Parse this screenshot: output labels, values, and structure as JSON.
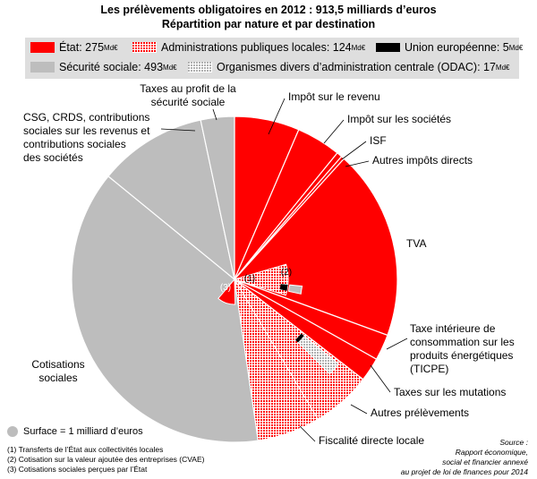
{
  "title": "Les prélèvements obligatoires en 2012 : 913,5 milliards d’euros",
  "subtitle": "Répartition par nature et par destination",
  "legend": {
    "etat": {
      "label": "État: 275",
      "unit": "Md€",
      "color": "#ff0000"
    },
    "apul": {
      "label": "Administrations publiques locales: 124",
      "unit": "Md€",
      "color": "#ff0000"
    },
    "ue": {
      "label": "Union européenne: 5",
      "unit": "Md€",
      "color": "#000000"
    },
    "secu": {
      "label": "Sécurité sociale: 493",
      "unit": "Md€",
      "color": "#bdbdbd"
    },
    "odac": {
      "label": "Organismes divers d’administration centrale (ODAC): 17",
      "unit": "Md€",
      "color": "#bdbdbd"
    }
  },
  "chart_data": {
    "type": "pie",
    "title": "Les prélèvements obligatoires en 2012 : 913,5 milliards d’euros",
    "subtitle": "Répartition par nature et par destination",
    "total": 913.5,
    "scale_note": "Surface = 1 milliard d’euros",
    "categories": [
      {
        "label": "Impôt sur le revenu",
        "value": 60
      },
      {
        "label": "Impôt sur les sociétés",
        "value": 41
      },
      {
        "label": "ISF",
        "value": 5
      },
      {
        "label": "Autres impôts directs",
        "value": 3
      },
      {
        "label": "TVA",
        "value": 175
      },
      {
        "label": "Taxe intérieure de consommation sur les produits énergétiques (TICPE)",
        "value": 24
      },
      {
        "label": "Taxes sur les mutations",
        "value": 22
      },
      {
        "label": "Autres prélèvements",
        "value": 55
      },
      {
        "label": "Fiscalité directe locale",
        "value": 58
      },
      {
        "label": "Cotisations sociales",
        "value": 355
      },
      {
        "label": "CSG, CRDS, contributions sociales sur les revenus et contributions sociales des sociétés",
        "value": 100
      },
      {
        "label": "Taxes au profit de la sécurité sociale",
        "value": 31
      }
    ],
    "series": [
      {
        "name": "État",
        "value": 275
      },
      {
        "name": "Administrations publiques locales",
        "value": 124
      },
      {
        "name": "Union européenne",
        "value": 5
      },
      {
        "name": "Sécurité sociale",
        "value": 493
      },
      {
        "name": "Organismes divers d’administration centrale (ODAC)",
        "value": 17
      }
    ],
    "inner_labels": [
      "(1)",
      "(2)",
      "(3)"
    ]
  },
  "footnotes": [
    "(1) Transferts de l’État aux collectivités locales",
    "(2) Cotisation sur la valeur ajoutée des entreprises (CVAE)",
    "(3) Cotisations sociales perçues par l’État"
  ],
  "source": [
    "Source :",
    "Rapport économique,",
    "social et financier annexé",
    "au projet de loi de finances pour 2014"
  ]
}
